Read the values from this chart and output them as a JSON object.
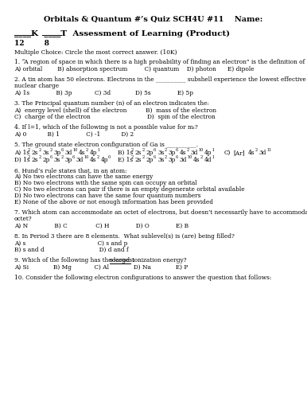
{
  "background_color": "#ffffff",
  "text_color": "#000000",
  "title": "Orbitals & Quantum #’s Quiz SCH4U #11    Name:",
  "subtitle_line": "____K  ____T  Assessment of Learning (Product)",
  "scores": "12        8",
  "mc_instruction": "Multiple Choice: Circle the most correct answer. (10K)"
}
